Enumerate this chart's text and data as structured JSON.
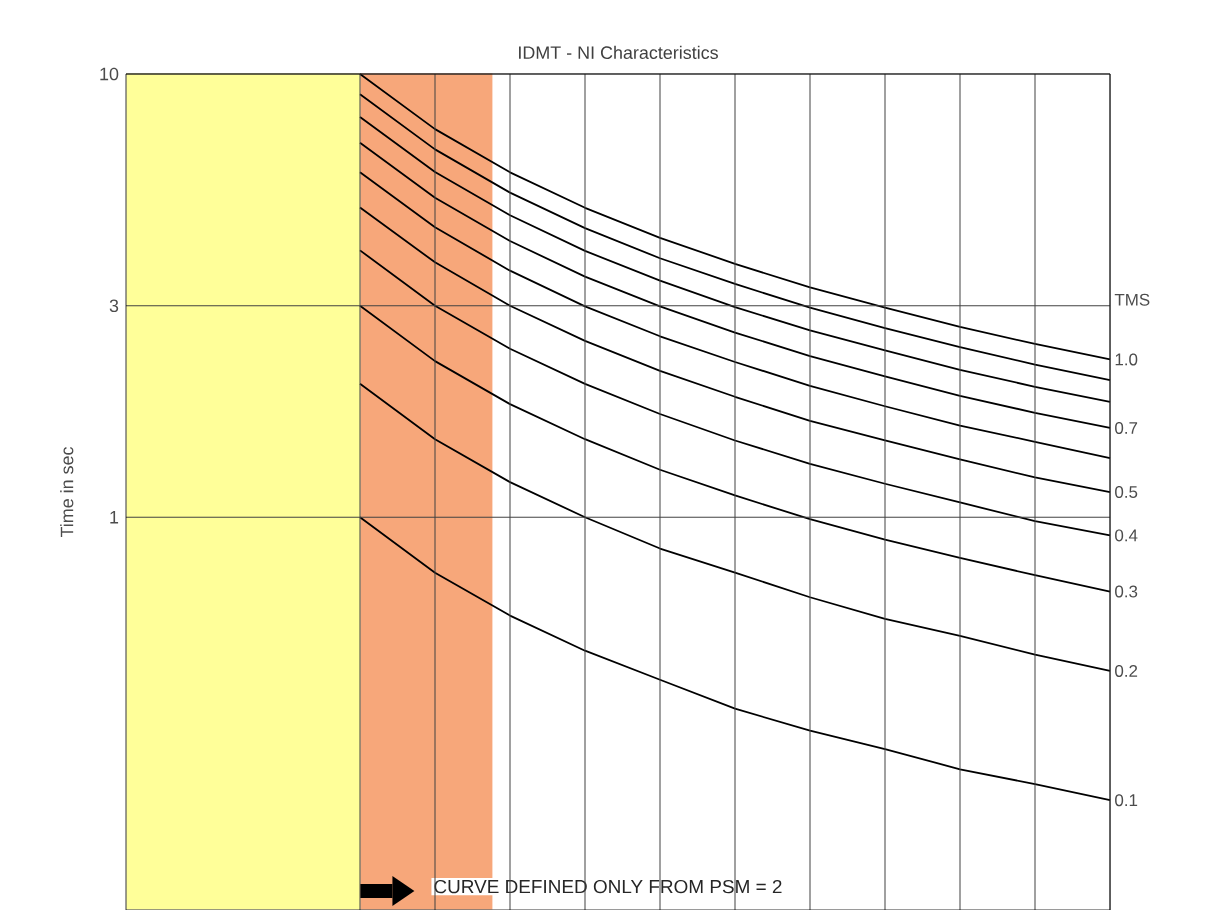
{
  "chart_data": {
    "type": "line",
    "title": "IDMT - NI Characteristics",
    "ylabel": "Time in sec",
    "categories": [
      null,
      null,
      null,
      null,
      null,
      null,
      null,
      null,
      null,
      null,
      null
    ],
    "ylim": [
      0.13,
      10
    ],
    "yticks": [
      1,
      3,
      10
    ],
    "log": "y",
    "grid": true,
    "legend": false,
    "tick_labels": "y",
    "marker": "none",
    "line_style": "solid",
    "annotations": [
      "TMS",
      "CURVE DEFINED ONLY FROM PSM = 2"
    ],
    "series": [
      {
        "name": "1.0",
        "color": "#000000",
        "values": [
          10.0,
          7.51,
          6.0,
          4.99,
          4.27,
          3.73,
          3.3,
          2.97,
          2.69,
          2.46,
          2.27
        ]
      },
      {
        "color": "#000000",
        "values": [
          9.0,
          6.76,
          5.4,
          4.49,
          3.84,
          3.36,
          2.97,
          2.67,
          2.42,
          2.21,
          2.04
        ]
      },
      {
        "color": "#000000",
        "values": [
          8.0,
          6.01,
          4.8,
          3.99,
          3.42,
          2.98,
          2.64,
          2.38,
          2.15,
          1.97,
          1.82
        ]
      },
      {
        "name": "0.7",
        "color": "#000000",
        "values": [
          7.0,
          5.26,
          4.2,
          3.49,
          2.99,
          2.61,
          2.31,
          2.08,
          1.88,
          1.72,
          1.59
        ]
      },
      {
        "color": "#000000",
        "values": [
          6.0,
          4.51,
          3.6,
          2.99,
          2.56,
          2.24,
          1.98,
          1.78,
          1.61,
          1.48,
          1.36
        ]
      },
      {
        "name": "0.5",
        "color": "#000000",
        "values": [
          5.0,
          3.76,
          3.0,
          2.5,
          2.14,
          1.87,
          1.65,
          1.49,
          1.35,
          1.23,
          1.14
        ]
      },
      {
        "name": "0.4",
        "color": "#000000",
        "values": [
          4.0,
          3.0,
          2.4,
          2.0,
          1.71,
          1.49,
          1.32,
          1.19,
          1.08,
          0.98,
          0.91
        ]
      },
      {
        "name": "0.3",
        "color": "#000000",
        "values": [
          3.0,
          2.25,
          1.8,
          1.5,
          1.28,
          1.12,
          0.99,
          0.89,
          0.81,
          0.74,
          0.68
        ]
      },
      {
        "name": "0.2",
        "color": "#000000",
        "values": [
          2.0,
          1.5,
          1.2,
          1.0,
          0.85,
          0.75,
          0.66,
          0.59,
          0.54,
          0.49,
          0.45
        ]
      },
      {
        "name": "0.1",
        "color": "#000000",
        "values": [
          1.0,
          0.75,
          0.6,
          0.5,
          0.43,
          0.37,
          0.33,
          0.3,
          0.27,
          0.25,
          0.23
        ]
      }
    ]
  }
}
